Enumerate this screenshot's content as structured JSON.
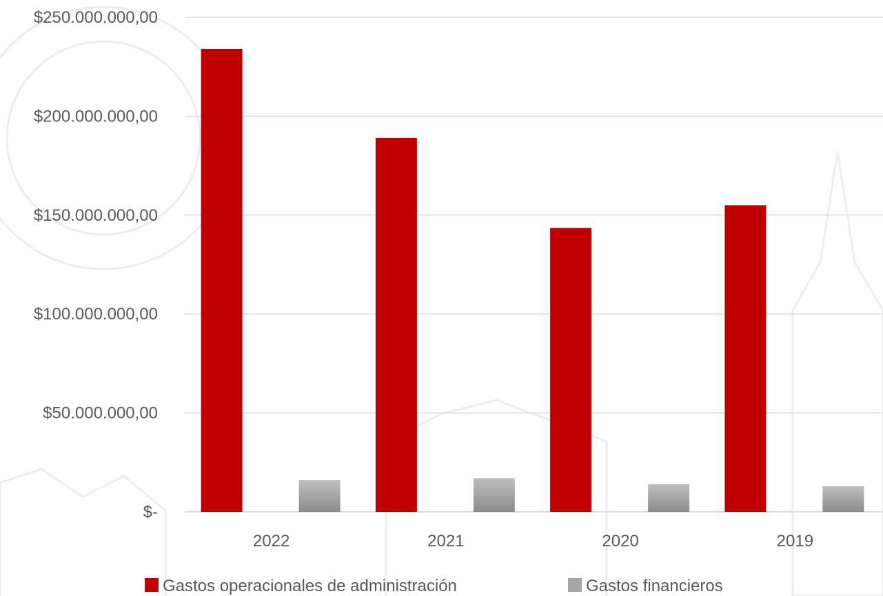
{
  "chart_data": {
    "type": "bar",
    "title": "",
    "xlabel": "",
    "ylabel": "",
    "categories": [
      "2022",
      "2021",
      "2020",
      "2019"
    ],
    "series": [
      {
        "name": "Gastos operacionales de administración",
        "color": "#C00000",
        "values": [
          234000000,
          189000000,
          143500000,
          155000000
        ]
      },
      {
        "name": "Gastos financieros",
        "color": "#A6A6A6",
        "values": [
          16000000,
          17000000,
          14000000,
          13000000
        ]
      }
    ],
    "ylim": [
      0,
      250000000
    ],
    "yticks": [
      0,
      50000000,
      100000000,
      150000000,
      200000000,
      250000000
    ],
    "ytick_labels": [
      "$-",
      "$50.000.000,00",
      "$100.000.000,00",
      "$150.000.000,00",
      "$200.000.000,00",
      "$250.000.000,00"
    ],
    "grid": true,
    "legend_position": "bottom"
  }
}
